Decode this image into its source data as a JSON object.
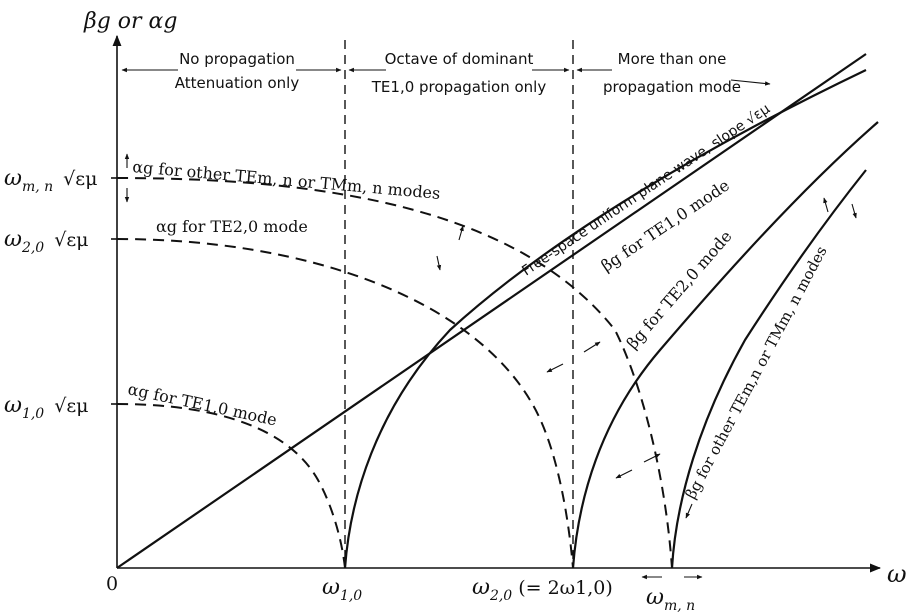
{
  "axes": {
    "y_label": "βg or αg",
    "x_label": "ω",
    "origin_label": "0"
  },
  "y_ticks": [
    {
      "sym": "ω",
      "sub": "m, n",
      "tail": "√εμ"
    },
    {
      "sym": "ω",
      "sub": "2,0",
      "tail": "√εμ"
    },
    {
      "sym": "ω",
      "sub": "1,0",
      "tail": "√εμ"
    }
  ],
  "x_ticks": [
    {
      "sym": "ω",
      "sub": "1,0",
      "rest": ""
    },
    {
      "sym": "ω",
      "sub": "2,0",
      "rest": "(= 2ω1,0)"
    },
    {
      "sym": "ω",
      "sub": "m, n",
      "rest": ""
    }
  ],
  "regions": [
    {
      "line1": "No propagation",
      "line2": "Attenuation only"
    },
    {
      "line1": "Octave of dominant",
      "line2": "TE1,0 propagation only"
    },
    {
      "line1": "More than one",
      "line2": "propagation mode"
    }
  ],
  "curve_labels": {
    "alpha_other": "αg for other TEm, n or TMm, n modes",
    "alpha_te20": "αg for TE2,0 mode",
    "alpha_te10": "αg for TE1,0 mode",
    "free_space": "Free-space uniform plane wave, slope √εμ",
    "beta_te10": "βg for TE1,0 mode",
    "beta_te20": "βg for TE2,0 mode",
    "beta_other": "βg for other TEm,n or TMm, n modes"
  }
}
